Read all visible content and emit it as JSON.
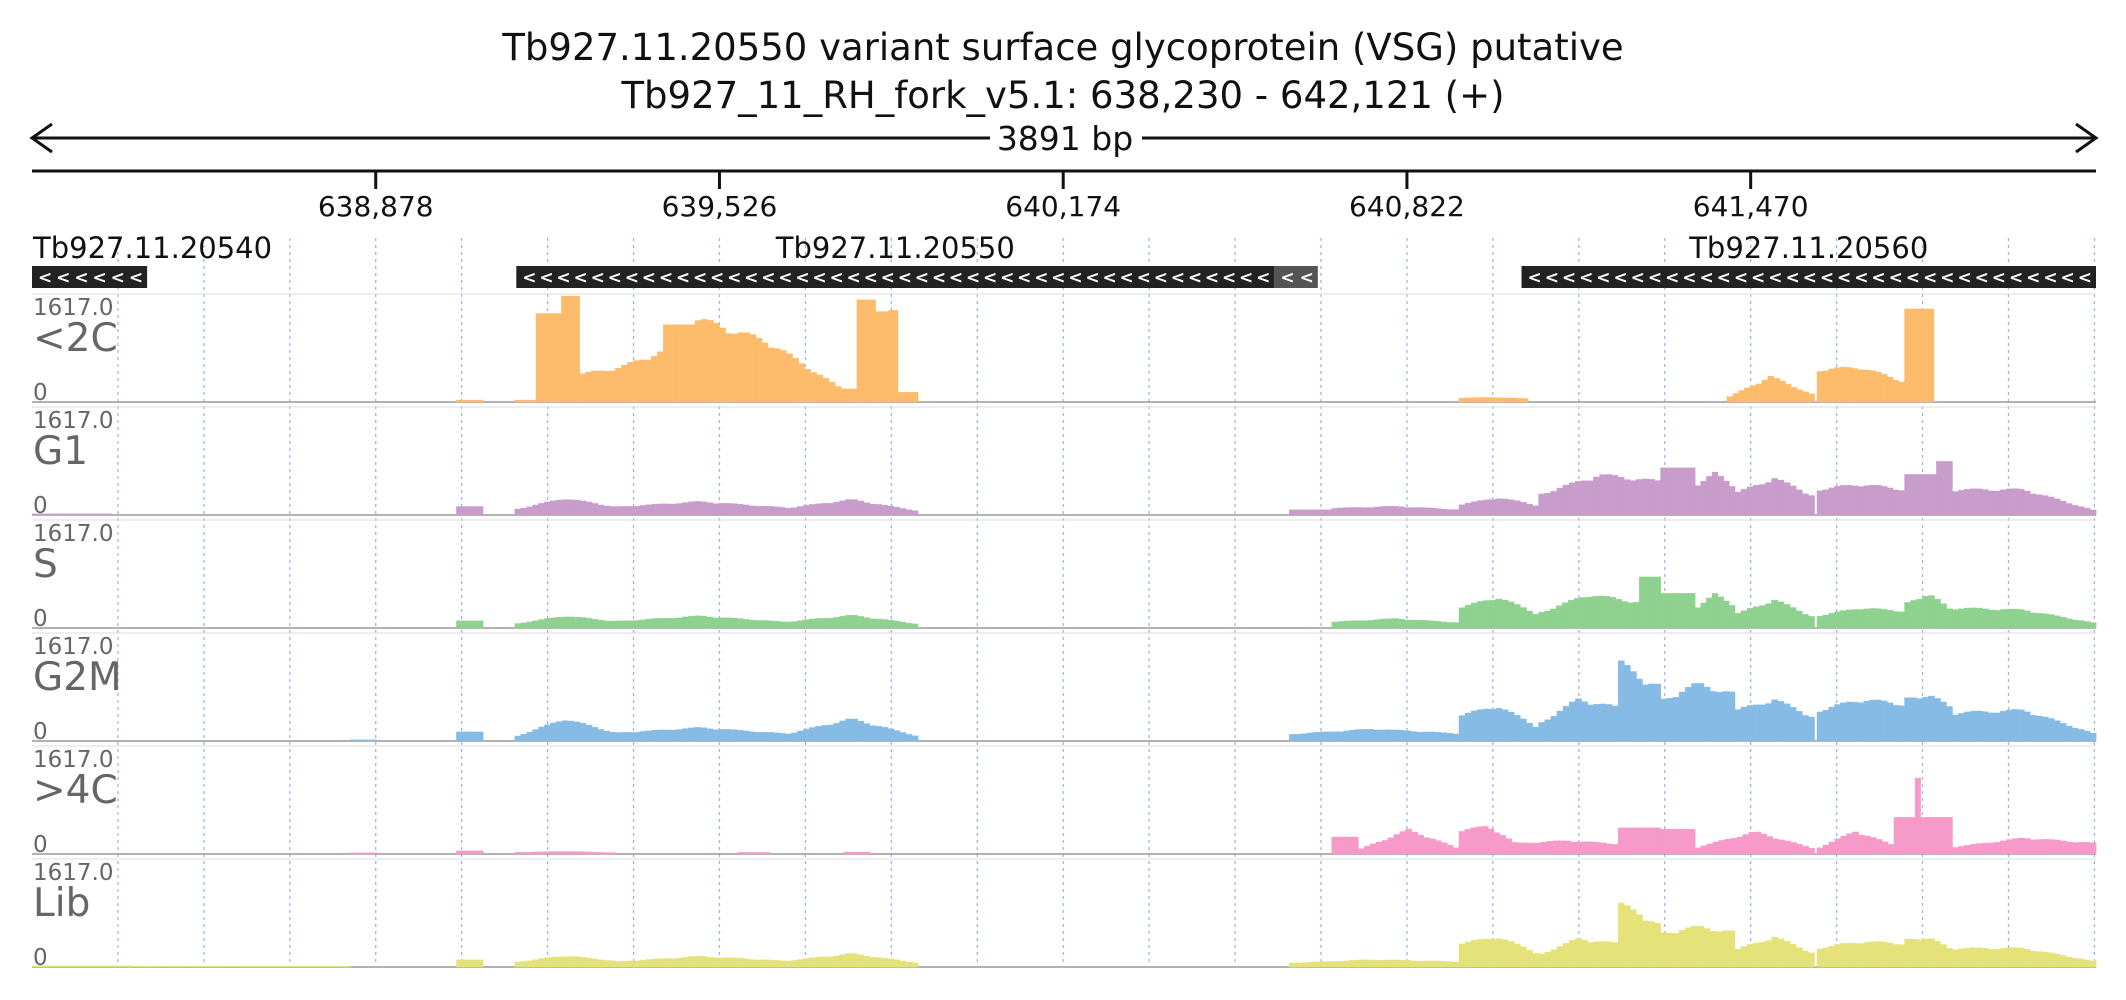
{
  "header": {
    "title": "Tb927.11.20550  variant surface glycoprotein (VSG)  putative",
    "locus": "Tb927_11_RH_fork_v5.1: 638,230 - 642,121 (+)",
    "span": "3891 bp"
  },
  "colors": {
    "<2C": "#fdbb6c",
    "G1": "#c89ccb",
    "S": "#8fd18e",
    "G2M": "#86bbe5",
    ">4C": "#f59ac9",
    "Lib": "#e6e27a",
    "gene_bar": "#222222",
    "gene_bar_alt": "#555555",
    "grid": "#9ab9e0"
  },
  "chart_data": {
    "type": "bar",
    "x_unit": "bp",
    "xlim": [
      638230,
      642121
    ],
    "ylim": [
      0,
      1617.0
    ],
    "x_ticks": [
      "638,878",
      "639,526",
      "640,174",
      "640,822",
      "641,470"
    ],
    "x_tick_values": [
      638878,
      639526,
      640174,
      640822,
      641470
    ],
    "grid_lines": true,
    "genes": [
      {
        "name": "Tb927.11.20540",
        "start": 638230,
        "end": 638447,
        "strand": "-"
      },
      {
        "name": "Tb927.11.20550",
        "start": 639143,
        "end": 640572,
        "strand": "-"
      },
      {
        "name": "",
        "start": 640572,
        "end": 640654,
        "strand": "-",
        "alt": true
      },
      {
        "name": "Tb927.11.20560",
        "start": 641038,
        "end": 642121,
        "strand": "-"
      }
    ],
    "tracks": [
      {
        "name": "<2C",
        "ymax": "1617.0",
        "ymin": "0",
        "segments": [
          {
            "start": 639030,
            "end": 639080,
            "shape": "flat",
            "values": [
              30
            ]
          },
          {
            "start": 639140,
            "end": 639180,
            "shape": "flat",
            "values": [
              30
            ]
          },
          {
            "start": 639180,
            "end": 639228,
            "shape": "flat",
            "values": [
              1350
            ]
          },
          {
            "start": 639228,
            "end": 639262,
            "shape": "flat",
            "values": [
              1617
            ]
          },
          {
            "start": 639262,
            "end": 639420,
            "shape": "wave",
            "values": [
              410,
              520,
              760
            ]
          },
          {
            "start": 639420,
            "end": 639480,
            "shape": "flat",
            "values": [
              1180
            ]
          },
          {
            "start": 639480,
            "end": 639755,
            "shape": "wave",
            "values": [
              1250,
              900,
              200
            ]
          },
          {
            "start": 639755,
            "end": 639785,
            "shape": "flat",
            "values": [
              200
            ]
          },
          {
            "start": 639785,
            "end": 639820,
            "shape": "flat",
            "values": [
              1560
            ]
          },
          {
            "start": 639820,
            "end": 639845,
            "shape": "flat",
            "values": [
              1380
            ]
          },
          {
            "start": 639845,
            "end": 639862,
            "shape": "flat",
            "values": [
              1400
            ]
          },
          {
            "start": 639862,
            "end": 639900,
            "shape": "flat",
            "values": [
              150
            ]
          },
          {
            "start": 640920,
            "end": 641050,
            "shape": "wave",
            "values": [
              60,
              70,
              50
            ]
          },
          {
            "start": 641425,
            "end": 641590,
            "shape": "wave",
            "values": [
              60,
              380,
              100
            ]
          },
          {
            "start": 641595,
            "end": 641760,
            "shape": "wave",
            "values": [
              480,
              520,
              300
            ]
          },
          {
            "start": 641760,
            "end": 641815,
            "shape": "flat",
            "values": [
              1420
            ]
          }
        ]
      },
      {
        "name": "G1",
        "ymax": "1617.0",
        "ymin": "0",
        "segments": [
          {
            "start": 638230,
            "end": 638380,
            "shape": "flat",
            "values": [
              20
            ]
          },
          {
            "start": 639030,
            "end": 639080,
            "shape": "flat",
            "values": [
              130
            ]
          },
          {
            "start": 639140,
            "end": 639330,
            "shape": "wave",
            "values": [
              80,
              250,
              120
            ]
          },
          {
            "start": 639330,
            "end": 639650,
            "shape": "wave",
            "values": [
              120,
              200,
              110
            ]
          },
          {
            "start": 639650,
            "end": 639900,
            "shape": "wave",
            "values": [
              100,
              230,
              60
            ]
          },
          {
            "start": 640600,
            "end": 640680,
            "shape": "flat",
            "values": [
              80
            ]
          },
          {
            "start": 640680,
            "end": 640920,
            "shape": "wave",
            "values": [
              100,
              130,
              80
            ]
          },
          {
            "start": 640920,
            "end": 641070,
            "shape": "wave",
            "values": [
              150,
              260,
              140
            ]
          },
          {
            "start": 641070,
            "end": 641300,
            "shape": "wave",
            "values": [
              300,
              600,
              500
            ]
          },
          {
            "start": 641300,
            "end": 641365,
            "shape": "flat",
            "values": [
              720
            ]
          },
          {
            "start": 641365,
            "end": 641440,
            "shape": "wave",
            "values": [
              450,
              620,
              420
            ]
          },
          {
            "start": 641440,
            "end": 641590,
            "shape": "wave",
            "values": [
              320,
              550,
              280
            ]
          },
          {
            "start": 641595,
            "end": 641760,
            "shape": "wave",
            "values": [
              380,
              460,
              380
            ]
          },
          {
            "start": 641760,
            "end": 641820,
            "shape": "flat",
            "values": [
              620
            ]
          },
          {
            "start": 641820,
            "end": 641850,
            "shape": "flat",
            "values": [
              820
            ]
          },
          {
            "start": 641850,
            "end": 642121,
            "shape": "wave",
            "values": [
              380,
              380,
              60
            ]
          }
        ]
      },
      {
        "name": "S",
        "ymax": "1617.0",
        "ymin": "0",
        "segments": [
          {
            "start": 639030,
            "end": 639080,
            "shape": "flat",
            "values": [
              110
            ]
          },
          {
            "start": 639140,
            "end": 639330,
            "shape": "wave",
            "values": [
              60,
              180,
              100
            ]
          },
          {
            "start": 639330,
            "end": 639650,
            "shape": "wave",
            "values": [
              100,
              180,
              90
            ]
          },
          {
            "start": 639650,
            "end": 639900,
            "shape": "wave",
            "values": [
              90,
              190,
              60
            ]
          },
          {
            "start": 640680,
            "end": 640920,
            "shape": "wave",
            "values": [
              90,
              140,
              80
            ]
          },
          {
            "start": 640920,
            "end": 641070,
            "shape": "wave",
            "values": [
              300,
              460,
              200
            ]
          },
          {
            "start": 641070,
            "end": 641260,
            "shape": "wave",
            "values": [
              220,
              500,
              380
            ]
          },
          {
            "start": 641260,
            "end": 641300,
            "shape": "flat",
            "values": [
              780
            ]
          },
          {
            "start": 641300,
            "end": 641365,
            "shape": "flat",
            "values": [
              530
            ]
          },
          {
            "start": 641365,
            "end": 641440,
            "shape": "wave",
            "values": [
              300,
              500,
              330
            ]
          },
          {
            "start": 641440,
            "end": 641590,
            "shape": "wave",
            "values": [
              200,
              420,
              160
            ]
          },
          {
            "start": 641595,
            "end": 641760,
            "shape": "wave",
            "values": [
              180,
              300,
              250
            ]
          },
          {
            "start": 641760,
            "end": 641850,
            "shape": "wave",
            "values": [
              350,
              520,
              250
            ]
          },
          {
            "start": 641850,
            "end": 642121,
            "shape": "wave",
            "values": [
              300,
              270,
              70
            ]
          }
        ]
      },
      {
        "name": "G2M",
        "ymax": "1617.0",
        "ymin": "0",
        "segments": [
          {
            "start": 638830,
            "end": 638880,
            "shape": "flat",
            "values": [
              20
            ]
          },
          {
            "start": 639030,
            "end": 639080,
            "shape": "flat",
            "values": [
              140
            ]
          },
          {
            "start": 639140,
            "end": 639330,
            "shape": "wave",
            "values": [
              60,
              330,
              120
            ]
          },
          {
            "start": 639330,
            "end": 639650,
            "shape": "wave",
            "values": [
              120,
              200,
              110
            ]
          },
          {
            "start": 639650,
            "end": 639900,
            "shape": "wave",
            "values": [
              100,
              330,
              70
            ]
          },
          {
            "start": 640600,
            "end": 640920,
            "shape": "wave",
            "values": [
              100,
              180,
              110
            ]
          },
          {
            "start": 640920,
            "end": 641070,
            "shape": "wave",
            "values": [
              380,
              520,
              200
            ]
          },
          {
            "start": 641070,
            "end": 641220,
            "shape": "wave",
            "values": [
              250,
              620,
              500
            ]
          },
          {
            "start": 641220,
            "end": 641300,
            "shape": "wave",
            "values": [
              1200,
              950,
              820
            ]
          },
          {
            "start": 641300,
            "end": 641440,
            "shape": "wave",
            "values": [
              600,
              850,
              700
            ]
          },
          {
            "start": 641440,
            "end": 641590,
            "shape": "wave",
            "values": [
              450,
              620,
              350
            ]
          },
          {
            "start": 641595,
            "end": 641760,
            "shape": "wave",
            "values": [
              450,
              620,
              550
            ]
          },
          {
            "start": 641760,
            "end": 641850,
            "shape": "wave",
            "values": [
              620,
              700,
              480
            ]
          },
          {
            "start": 641850,
            "end": 642121,
            "shape": "wave",
            "values": [
              420,
              460,
              100
            ]
          }
        ]
      },
      {
        "name": ">4C",
        "ymax": "1617.0",
        "ymin": "0",
        "segments": [
          {
            "start": 638830,
            "end": 638880,
            "shape": "flat",
            "values": [
              20
            ]
          },
          {
            "start": 639030,
            "end": 639080,
            "shape": "flat",
            "values": [
              50
            ]
          },
          {
            "start": 639140,
            "end": 639330,
            "shape": "wave",
            "values": [
              25,
              40,
              20
            ]
          },
          {
            "start": 639560,
            "end": 639620,
            "shape": "flat",
            "values": [
              25
            ]
          },
          {
            "start": 639760,
            "end": 639810,
            "shape": "flat",
            "values": [
              30
            ]
          },
          {
            "start": 640680,
            "end": 640730,
            "shape": "flat",
            "values": [
              260
            ]
          },
          {
            "start": 640730,
            "end": 640920,
            "shape": "wave",
            "values": [
              60,
              360,
              80
            ]
          },
          {
            "start": 640920,
            "end": 641030,
            "shape": "wave",
            "values": [
              340,
              420,
              140
            ]
          },
          {
            "start": 641030,
            "end": 641220,
            "shape": "wave",
            "values": [
              160,
              200,
              150
            ]
          },
          {
            "start": 641220,
            "end": 641300,
            "shape": "flat",
            "values": [
              400
            ]
          },
          {
            "start": 641300,
            "end": 641365,
            "shape": "flat",
            "values": [
              380
            ]
          },
          {
            "start": 641365,
            "end": 641590,
            "shape": "wave",
            "values": [
              90,
              330,
              80
            ]
          },
          {
            "start": 641595,
            "end": 641740,
            "shape": "wave",
            "values": [
              80,
              340,
              130
            ]
          },
          {
            "start": 641740,
            "end": 641780,
            "shape": "flat",
            "values": [
              560
            ]
          },
          {
            "start": 641780,
            "end": 641790,
            "shape": "flat",
            "values": [
              1160
            ]
          },
          {
            "start": 641790,
            "end": 641850,
            "shape": "flat",
            "values": [
              560
            ]
          },
          {
            "start": 641850,
            "end": 642121,
            "shape": "wave",
            "values": [
              100,
              240,
              160
            ]
          }
        ]
      },
      {
        "name": "Lib",
        "ymax": "1617.0",
        "ymin": "0",
        "segments": [
          {
            "start": 638230,
            "end": 638420,
            "shape": "flat",
            "values": [
              20
            ]
          },
          {
            "start": 638420,
            "end": 638830,
            "shape": "flat",
            "values": [
              10
            ]
          },
          {
            "start": 639030,
            "end": 639080,
            "shape": "flat",
            "values": [
              110
            ]
          },
          {
            "start": 639140,
            "end": 639330,
            "shape": "wave",
            "values": [
              70,
              170,
              90
            ]
          },
          {
            "start": 639330,
            "end": 639650,
            "shape": "wave",
            "values": [
              80,
              160,
              90
            ]
          },
          {
            "start": 639650,
            "end": 639900,
            "shape": "wave",
            "values": [
              90,
              200,
              60
            ]
          },
          {
            "start": 640600,
            "end": 640920,
            "shape": "wave",
            "values": [
              60,
              110,
              80
            ]
          },
          {
            "start": 640920,
            "end": 641070,
            "shape": "wave",
            "values": [
              350,
              450,
              200
            ]
          },
          {
            "start": 641070,
            "end": 641220,
            "shape": "wave",
            "values": [
              180,
              420,
              350
            ]
          },
          {
            "start": 641220,
            "end": 641300,
            "shape": "wave",
            "values": [
              950,
              800,
              620
            ]
          },
          {
            "start": 641300,
            "end": 641440,
            "shape": "wave",
            "values": [
              500,
              600,
              520
            ]
          },
          {
            "start": 641440,
            "end": 641590,
            "shape": "wave",
            "values": [
              250,
              450,
              200
            ]
          },
          {
            "start": 641595,
            "end": 641760,
            "shape": "wave",
            "values": [
              280,
              380,
              350
            ]
          },
          {
            "start": 641760,
            "end": 641850,
            "shape": "wave",
            "values": [
              400,
              450,
              250
            ]
          },
          {
            "start": 641850,
            "end": 642121,
            "shape": "wave",
            "values": [
              280,
              280,
              80
            ]
          }
        ]
      }
    ]
  }
}
